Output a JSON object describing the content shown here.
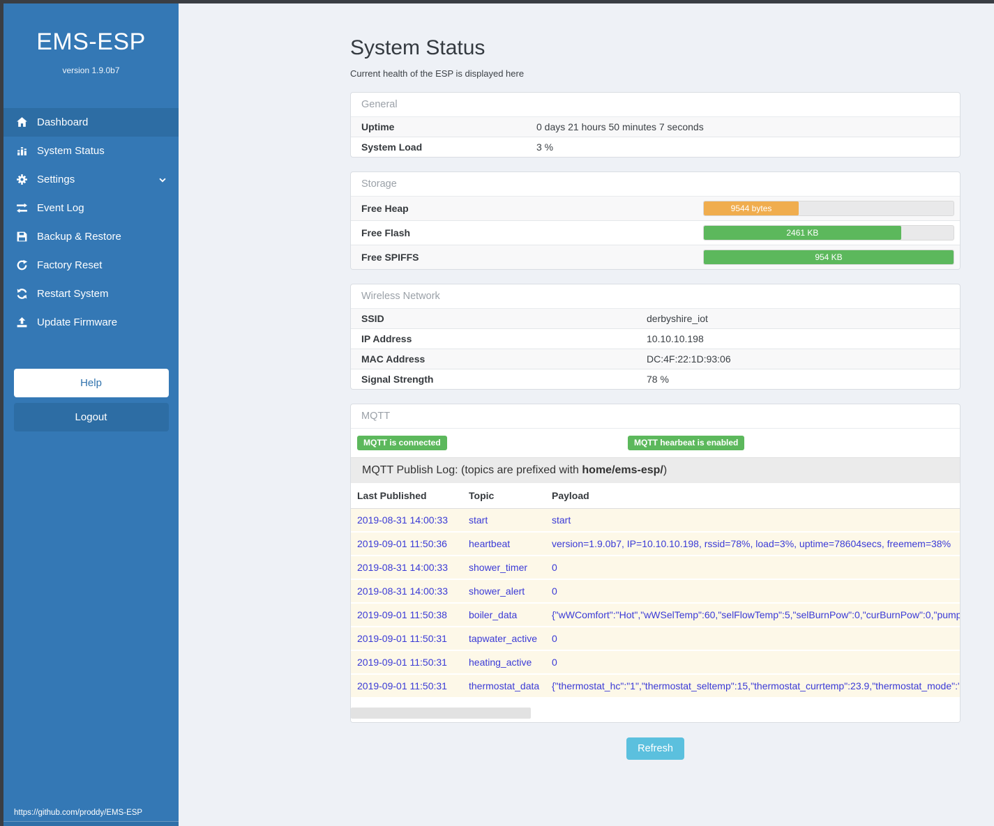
{
  "colors": {
    "sidebar_blue": "#3478b5",
    "active_item_blue": "#2d6da4",
    "success_green": "#5cb85c",
    "warning_orange": "#f0ad4e",
    "info_blue": "#5bc0de",
    "log_row_bg": "#fdf8e8",
    "log_text_blue": "#3a3ad6"
  },
  "sidebar": {
    "title": "EMS-ESP",
    "version": "version 1.9.0b7",
    "items": [
      {
        "label": "Dashboard",
        "icon": "home-icon",
        "active": true
      },
      {
        "label": "System Status",
        "icon": "status-bars-icon",
        "active": false
      },
      {
        "label": "Settings",
        "icon": "gear-icon",
        "active": false,
        "chevron": true
      },
      {
        "label": "Event Log",
        "icon": "exchange-icon",
        "active": false
      },
      {
        "label": "Backup & Restore",
        "icon": "save-icon",
        "active": false
      },
      {
        "label": "Factory Reset",
        "icon": "rotate-right-icon",
        "active": false
      },
      {
        "label": "Restart System",
        "icon": "refresh-icon",
        "active": false
      },
      {
        "label": "Update Firmware",
        "icon": "upload-icon",
        "active": false
      }
    ],
    "help_label": "Help",
    "logout_label": "Logout",
    "footer_url": "https://github.com/proddy/EMS-ESP"
  },
  "header": {
    "title": "System Status",
    "subtitle": "Current health of the ESP is displayed here"
  },
  "panels": {
    "general": {
      "title": "General",
      "rows": [
        {
          "label": "Uptime",
          "value": "0 days 21 hours 50 minutes 7 seconds"
        },
        {
          "label": "System Load",
          "value": "3 %"
        }
      ]
    },
    "storage": {
      "title": "Storage",
      "rows": [
        {
          "label": "Free Heap",
          "bar_label": "9544 bytes",
          "percent": 38,
          "color": "#f0ad4e"
        },
        {
          "label": "Free Flash",
          "bar_label": "2461 KB",
          "percent": 79,
          "color": "#5cb85c"
        },
        {
          "label": "Free SPIFFS",
          "bar_label": "954 KB",
          "percent": 100,
          "color": "#5cb85c"
        }
      ]
    },
    "wireless": {
      "title": "Wireless Network",
      "rows": [
        {
          "label": "SSID",
          "value": "derbyshire_iot"
        },
        {
          "label": "IP Address",
          "value": "10.10.10.198"
        },
        {
          "label": "MAC Address",
          "value": "DC:4F:22:1D:93:06"
        },
        {
          "label": "Signal Strength",
          "value": "78 %"
        }
      ]
    },
    "mqtt": {
      "title": "MQTT",
      "badges": [
        "MQTT is connected",
        "MQTT hearbeat is enabled"
      ],
      "publish_log": {
        "prefix": "MQTT Publish Log: (topics are prefixed with ",
        "bold": "home/ems-esp/",
        "suffix": ")"
      },
      "table": {
        "headers": [
          "Last Published",
          "Topic",
          "Payload"
        ],
        "rows": [
          {
            "time": "2019-08-31 14:00:33",
            "topic": "start",
            "payload": "start"
          },
          {
            "time": "2019-09-01 11:50:36",
            "topic": "heartbeat",
            "payload": "version=1.9.0b7, IP=10.10.10.198, rssid=78%, load=3%, uptime=78604secs, freemem=38%"
          },
          {
            "time": "2019-08-31 14:00:33",
            "topic": "shower_timer",
            "payload": "0"
          },
          {
            "time": "2019-08-31 14:00:33",
            "topic": "shower_alert",
            "payload": "0"
          },
          {
            "time": "2019-09-01 11:50:38",
            "topic": "boiler_data",
            "payload": "{\"wWComfort\":\"Hot\",\"wWSelTemp\":60,\"selFlowTemp\":5,\"selBurnPow\":0,\"curBurnPow\":0,\"pump"
          },
          {
            "time": "2019-09-01 11:50:31",
            "topic": "tapwater_active",
            "payload": "0"
          },
          {
            "time": "2019-09-01 11:50:31",
            "topic": "heating_active",
            "payload": "0"
          },
          {
            "time": "2019-09-01 11:50:31",
            "topic": "thermostat_data",
            "payload": "{\"thermostat_hc\":\"1\",\"thermostat_seltemp\":15,\"thermostat_currtemp\":23.9,\"thermostat_mode\":\""
          }
        ]
      }
    }
  },
  "refresh_label": "Refresh"
}
